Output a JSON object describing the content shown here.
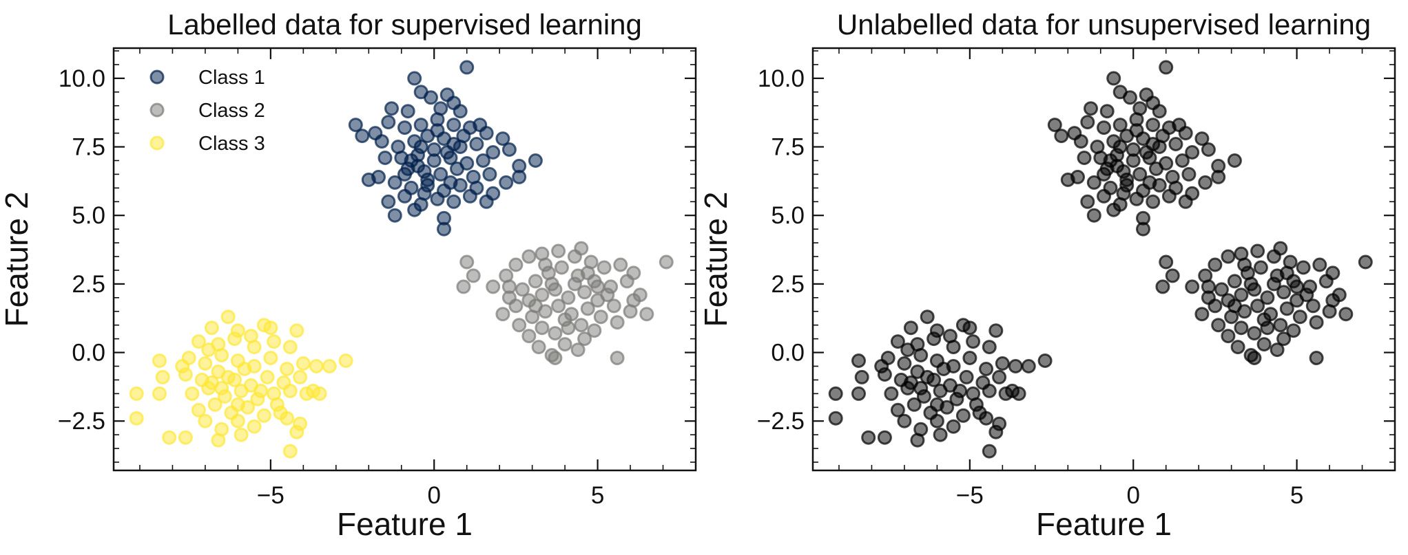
{
  "chart_data": [
    {
      "type": "scatter",
      "title": "Labelled data for supervised learning",
      "xlabel": "Feature 1",
      "ylabel": "Feature 2",
      "xlim": [
        -9.8,
        8.0
      ],
      "ylim": [
        -4.3,
        11.1
      ],
      "xticks": [
        -5,
        0,
        5
      ],
      "xtick_labels": [
        "−5",
        "0",
        "5"
      ],
      "yticks": [
        -2.5,
        0.0,
        2.5,
        5.0,
        7.5,
        10.0
      ],
      "ytick_labels": [
        "−2.5",
        "0.0",
        "2.5",
        "5.0",
        "7.5",
        "10.0"
      ],
      "grid": false,
      "legend_position": "top-left",
      "marker_alpha": 0.5,
      "series": [
        {
          "name": "Class 1",
          "color": "#00204c",
          "points": [
            [
              -0.6,
              10.0
            ],
            [
              1.0,
              10.4
            ],
            [
              -0.4,
              9.5
            ],
            [
              -0.1,
              9.3
            ],
            [
              0.4,
              9.4
            ],
            [
              0.6,
              9.1
            ],
            [
              -1.3,
              8.9
            ],
            [
              -0.8,
              8.8
            ],
            [
              0.2,
              8.9
            ],
            [
              0.8,
              8.8
            ],
            [
              -2.4,
              8.3
            ],
            [
              -1.8,
              8.0
            ],
            [
              -1.4,
              8.4
            ],
            [
              -0.9,
              8.2
            ],
            [
              -0.4,
              8.3
            ],
            [
              0.1,
              8.5
            ],
            [
              0.6,
              8.3
            ],
            [
              1.1,
              8.2
            ],
            [
              1.6,
              8.0
            ],
            [
              2.1,
              7.8
            ],
            [
              -2.2,
              7.9
            ],
            [
              -1.6,
              7.7
            ],
            [
              -1.1,
              7.5
            ],
            [
              -0.6,
              7.7
            ],
            [
              -0.2,
              7.9
            ],
            [
              0.3,
              7.8
            ],
            [
              0.8,
              7.5
            ],
            [
              1.3,
              7.6
            ],
            [
              1.8,
              7.3
            ],
            [
              2.3,
              7.4
            ],
            [
              -1.0,
              7.1
            ],
            [
              -0.5,
              7.2
            ],
            [
              0.0,
              7.0
            ],
            [
              0.5,
              7.1
            ],
            [
              1.0,
              6.9
            ],
            [
              1.5,
              7.0
            ],
            [
              -0.8,
              6.7
            ],
            [
              -0.3,
              6.6
            ],
            [
              0.2,
              6.5
            ],
            [
              0.7,
              6.7
            ],
            [
              1.2,
              6.4
            ],
            [
              1.7,
              6.5
            ],
            [
              2.6,
              6.8
            ],
            [
              3.1,
              7.0
            ],
            [
              -1.7,
              6.4
            ],
            [
              -1.2,
              6.2
            ],
            [
              -0.7,
              6.0
            ],
            [
              -0.2,
              6.1
            ],
            [
              0.3,
              5.9
            ],
            [
              0.8,
              6.1
            ],
            [
              1.3,
              6.0
            ],
            [
              1.8,
              5.8
            ],
            [
              2.6,
              6.4
            ],
            [
              -2.0,
              6.3
            ],
            [
              -1.4,
              5.5
            ],
            [
              -0.9,
              5.7
            ],
            [
              -0.4,
              5.4
            ],
            [
              0.1,
              5.6
            ],
            [
              0.6,
              5.5
            ],
            [
              1.1,
              5.7
            ],
            [
              1.6,
              5.5
            ],
            [
              -1.2,
              5.0
            ],
            [
              -0.6,
              5.2
            ],
            [
              0.3,
              4.9
            ],
            [
              0.3,
              4.5
            ],
            [
              -0.5,
              6.8
            ],
            [
              0.0,
              7.4
            ],
            [
              0.4,
              7.3
            ],
            [
              -0.2,
              6.3
            ],
            [
              0.5,
              6.2
            ],
            [
              -0.7,
              7.0
            ],
            [
              0.9,
              7.9
            ],
            [
              -1.5,
              7.1
            ],
            [
              1.4,
              8.3
            ],
            [
              -0.3,
              5.8
            ],
            [
              2.2,
              6.2
            ],
            [
              -0.9,
              6.5
            ],
            [
              0.6,
              7.6
            ],
            [
              0.1,
              8.1
            ],
            [
              -0.4,
              7.5
            ]
          ]
        },
        {
          "name": "Class 2",
          "color": "#7c7b78",
          "points": [
            [
              1.0,
              3.3
            ],
            [
              7.1,
              3.3
            ],
            [
              1.2,
              2.8
            ],
            [
              0.9,
              2.4
            ],
            [
              1.8,
              2.4
            ],
            [
              2.2,
              2.8
            ],
            [
              2.5,
              3.2
            ],
            [
              2.9,
              3.5
            ],
            [
              3.3,
              3.6
            ],
            [
              3.8,
              3.7
            ],
            [
              4.3,
              3.5
            ],
            [
              4.8,
              3.3
            ],
            [
              5.2,
              3.1
            ],
            [
              5.7,
              3.2
            ],
            [
              6.1,
              2.9
            ],
            [
              2.3,
              2.0
            ],
            [
              2.7,
              2.3
            ],
            [
              3.1,
              2.6
            ],
            [
              3.5,
              2.9
            ],
            [
              3.9,
              3.1
            ],
            [
              4.4,
              2.8
            ],
            [
              4.9,
              2.6
            ],
            [
              5.4,
              2.4
            ],
            [
              5.9,
              2.6
            ],
            [
              6.3,
              2.1
            ],
            [
              2.1,
              1.4
            ],
            [
              2.5,
              1.7
            ],
            [
              2.9,
              1.9
            ],
            [
              3.3,
              2.1
            ],
            [
              3.7,
              2.3
            ],
            [
              4.1,
              2.0
            ],
            [
              4.6,
              2.2
            ],
            [
              5.0,
              1.9
            ],
            [
              5.5,
              1.7
            ],
            [
              6.0,
              1.5
            ],
            [
              6.5,
              1.4
            ],
            [
              2.6,
              1.0
            ],
            [
              3.0,
              1.3
            ],
            [
              3.4,
              1.5
            ],
            [
              3.8,
              1.7
            ],
            [
              4.2,
              1.4
            ],
            [
              4.7,
              1.6
            ],
            [
              5.1,
              1.3
            ],
            [
              5.6,
              1.1
            ],
            [
              2.9,
              0.6
            ],
            [
              3.3,
              0.9
            ],
            [
              3.7,
              0.7
            ],
            [
              4.1,
              0.9
            ],
            [
              4.5,
              1.0
            ],
            [
              4.9,
              0.8
            ],
            [
              3.2,
              0.2
            ],
            [
              3.6,
              -0.1
            ],
            [
              4.0,
              0.3
            ],
            [
              4.4,
              0.1
            ],
            [
              3.7,
              -0.2
            ],
            [
              5.6,
              -0.2
            ],
            [
              4.3,
              2.5
            ],
            [
              3.6,
              2.5
            ],
            [
              4.7,
              2.9
            ],
            [
              3.1,
              1.7
            ],
            [
              5.3,
              2.1
            ],
            [
              4.0,
              1.2
            ],
            [
              2.3,
              2.4
            ],
            [
              6.1,
              1.9
            ],
            [
              4.5,
              3.8
            ],
            [
              3.4,
              3.2
            ],
            [
              5.0,
              2.4
            ],
            [
              4.6,
              0.5
            ]
          ]
        },
        {
          "name": "Class 3",
          "color": "#fde737",
          "points": [
            [
              -6.3,
              1.3
            ],
            [
              -5.2,
              1.0
            ],
            [
              -6.8,
              0.9
            ],
            [
              -6.0,
              0.8
            ],
            [
              -5.6,
              0.6
            ],
            [
              -4.2,
              0.8
            ],
            [
              -7.2,
              0.4
            ],
            [
              -6.6,
              0.3
            ],
            [
              -6.1,
              0.5
            ],
            [
              -5.5,
              0.2
            ],
            [
              -4.9,
              0.4
            ],
            [
              -4.4,
              0.2
            ],
            [
              -8.4,
              -0.3
            ],
            [
              -7.5,
              -0.2
            ],
            [
              -7.0,
              -0.4
            ],
            [
              -6.5,
              -0.1
            ],
            [
              -6.0,
              -0.3
            ],
            [
              -5.5,
              -0.5
            ],
            [
              -5.0,
              -0.2
            ],
            [
              -4.5,
              -0.6
            ],
            [
              -4.0,
              -0.4
            ],
            [
              -3.6,
              -0.5
            ],
            [
              -3.2,
              -0.5
            ],
            [
              -2.7,
              -0.3
            ],
            [
              -8.3,
              -0.9
            ],
            [
              -7.6,
              -0.8
            ],
            [
              -7.1,
              -1.0
            ],
            [
              -6.6,
              -0.7
            ],
            [
              -6.1,
              -1.0
            ],
            [
              -5.6,
              -1.2
            ],
            [
              -5.1,
              -0.9
            ],
            [
              -4.6,
              -1.1
            ],
            [
              -4.1,
              -0.9
            ],
            [
              -3.7,
              -1.4
            ],
            [
              -9.1,
              -1.5
            ],
            [
              -8.4,
              -1.5
            ],
            [
              -7.4,
              -1.5
            ],
            [
              -6.9,
              -1.3
            ],
            [
              -6.4,
              -1.6
            ],
            [
              -5.9,
              -1.4
            ],
            [
              -5.4,
              -1.7
            ],
            [
              -4.9,
              -1.5
            ],
            [
              -4.4,
              -1.4
            ],
            [
              -3.9,
              -1.5
            ],
            [
              -3.5,
              -1.5
            ],
            [
              -7.2,
              -2.1
            ],
            [
              -6.7,
              -1.9
            ],
            [
              -6.2,
              -2.2
            ],
            [
              -5.7,
              -2.0
            ],
            [
              -5.2,
              -2.3
            ],
            [
              -4.7,
              -2.2
            ],
            [
              -9.1,
              -2.4
            ],
            [
              -7.0,
              -2.5
            ],
            [
              -6.5,
              -2.8
            ],
            [
              -6.0,
              -2.5
            ],
            [
              -5.5,
              -2.7
            ],
            [
              -4.5,
              -2.4
            ],
            [
              -4.1,
              -2.6
            ],
            [
              -8.1,
              -3.1
            ],
            [
              -7.6,
              -3.1
            ],
            [
              -6.6,
              -3.2
            ],
            [
              -5.9,
              -3.0
            ],
            [
              -4.2,
              -2.9
            ],
            [
              -4.4,
              -3.6
            ],
            [
              -6.3,
              -0.9
            ],
            [
              -5.8,
              -0.6
            ],
            [
              -6.8,
              -1.1
            ],
            [
              -5.3,
              -1.4
            ],
            [
              -6.0,
              -1.9
            ],
            [
              -6.5,
              -1.3
            ],
            [
              -7.7,
              -0.5
            ],
            [
              -5.0,
              0.9
            ],
            [
              -6.9,
              0.1
            ],
            [
              -4.8,
              -1.9
            ]
          ]
        }
      ]
    },
    {
      "type": "scatter",
      "title": "Unlabelled data for unsupervised learning",
      "xlabel": "Feature 1",
      "ylabel": "Feature 2",
      "xlim": [
        -9.8,
        8.0
      ],
      "ylim": [
        -4.3,
        11.1
      ],
      "xticks": [
        -5,
        0,
        5
      ],
      "xtick_labels": [
        "−5",
        "0",
        "5"
      ],
      "yticks": [
        -2.5,
        0.0,
        2.5,
        5.0,
        7.5,
        10.0
      ],
      "ytick_labels": [
        "−2.5",
        "0.0",
        "2.5",
        "5.0",
        "7.5",
        "10.0"
      ],
      "grid": false,
      "legend_position": "none",
      "marker_alpha": 0.5,
      "marker_color": "#000000",
      "same_points_as_left_panel": true
    }
  ]
}
